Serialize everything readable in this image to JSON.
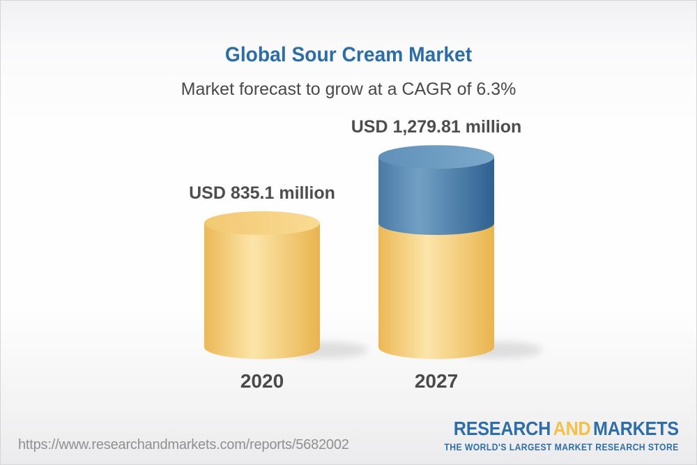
{
  "header": {
    "title": "Global Sour Cream Market",
    "subtitle": "Market forecast to grow at a CAGR of 6.3%"
  },
  "chart_data": {
    "type": "bar",
    "variant": "3d-cylinder-stacked",
    "title": "Global Sour Cream Market",
    "subtitle": "Market forecast to grow at a CAGR of 6.3%",
    "cagr_percent": 6.3,
    "unit": "USD million",
    "categories": [
      "2020",
      "2027"
    ],
    "values": [
      835.1,
      1279.81
    ],
    "data_labels": [
      "USD 835.1 million",
      "USD 1,279.81 million"
    ],
    "series_note": "2027 bar drawn as 2020-value yellow base segment plus blue growth segment on top",
    "legend": "none",
    "axes": "none",
    "grid": false
  },
  "footer": {
    "url": "https://www.researchandmarkets.com/reports/5682002",
    "logo": {
      "word1": "RESEARCH",
      "word2": "AND",
      "word3": "MARKETS",
      "tagline": "THE WORLD'S LARGEST MARKET RESEARCH STORE"
    }
  },
  "colors": {
    "title_text": "#2d6da6",
    "subtitle_text": "#494949",
    "label_text": "#4d4d4d",
    "year_text": "#4a4a4a",
    "url_text": "#8f8f8f",
    "logo_blue": "#2d6da8",
    "logo_gold": "#f3c04a",
    "yellow_left": "#ecb855",
    "yellow_mid": "#fce5aa",
    "yellow_right": "#e9b44e",
    "yellow_top_left": "#f2c873",
    "yellow_top_right": "#f9db93",
    "blue_left": "#4a7aa5",
    "blue_mid": "#72a0c4",
    "blue_right": "#2e6190",
    "blue_top_left": "#6090b8",
    "blue_top_right": "#7ba9cb",
    "shadow": "#bdbdbf"
  }
}
